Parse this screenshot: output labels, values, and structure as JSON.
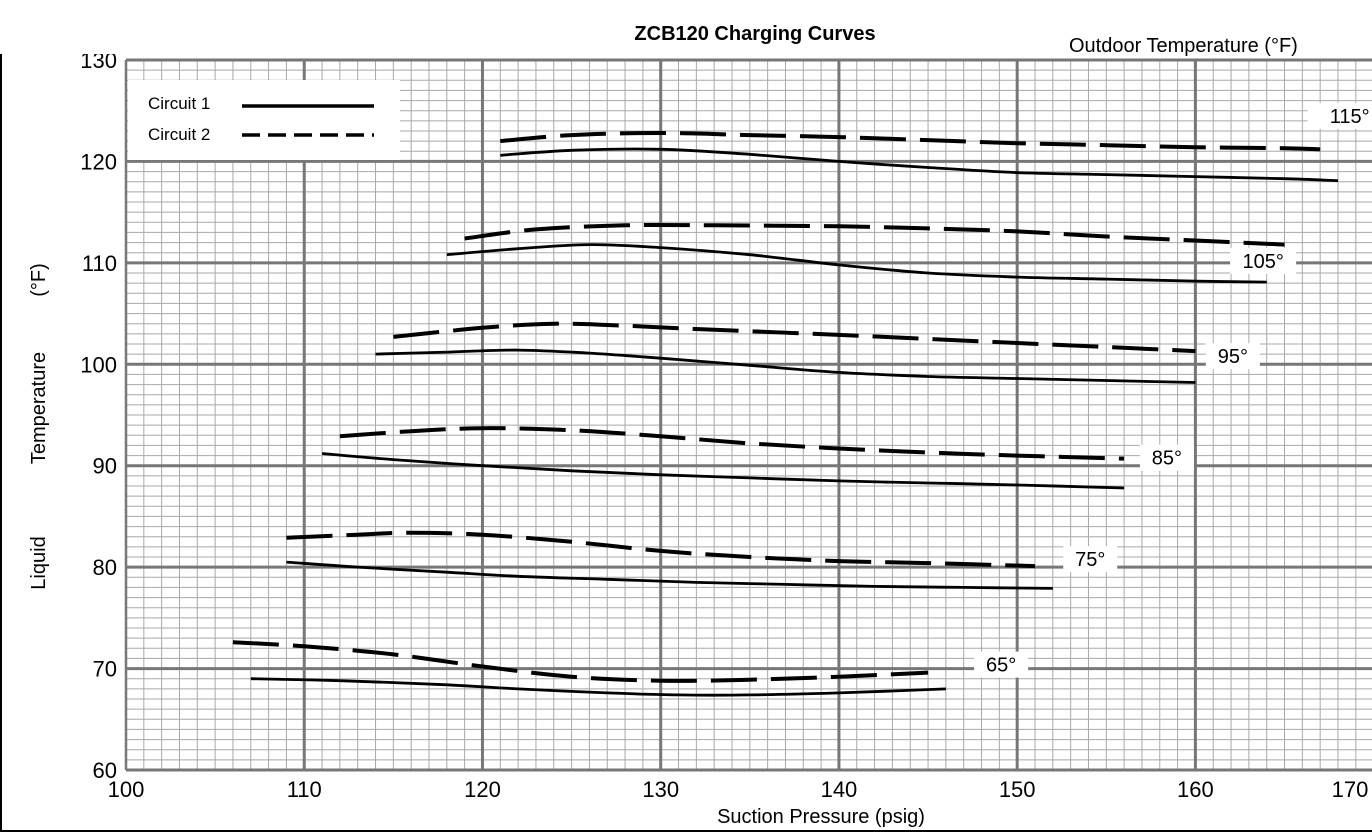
{
  "chart_data": {
    "type": "line",
    "title": "ZCB120 Charging Curves",
    "xlabel": "Suction Pressure (psig)",
    "ylabel_words": [
      "Liquid",
      "Temperature",
      "(°F)"
    ],
    "curve_group_label": "Outdoor Temperature (°F)",
    "xlim": [
      100,
      170
    ],
    "ylim": [
      60,
      130
    ],
    "x_ticks": [
      100,
      110,
      120,
      130,
      140,
      150,
      160,
      170
    ],
    "y_ticks": [
      60,
      70,
      80,
      90,
      100,
      110,
      120,
      130
    ],
    "grid": true,
    "legend_position": "top-left",
    "legend": [
      {
        "label": "Circuit 1",
        "style": "solid"
      },
      {
        "label": "Circuit 2",
        "style": "dashed"
      }
    ],
    "series": [
      {
        "group": "115°",
        "circuit": "Circuit 1",
        "points": [
          [
            121,
            120.6
          ],
          [
            125,
            121.1
          ],
          [
            130,
            121.2
          ],
          [
            135,
            120.7
          ],
          [
            140,
            120.0
          ],
          [
            145,
            119.4
          ],
          [
            150,
            118.9
          ],
          [
            155,
            118.7
          ],
          [
            160,
            118.5
          ],
          [
            165,
            118.3
          ],
          [
            168,
            118.1
          ]
        ]
      },
      {
        "group": "115°",
        "circuit": "Circuit 2",
        "points": [
          [
            121,
            122.0
          ],
          [
            125,
            122.6
          ],
          [
            130,
            122.8
          ],
          [
            135,
            122.6
          ],
          [
            140,
            122.4
          ],
          [
            145,
            122.1
          ],
          [
            150,
            121.8
          ],
          [
            155,
            121.6
          ],
          [
            160,
            121.4
          ],
          [
            165,
            121.3
          ],
          [
            167,
            121.2
          ]
        ]
      },
      {
        "group": "105°",
        "circuit": "Circuit 1",
        "points": [
          [
            118,
            110.8
          ],
          [
            122,
            111.4
          ],
          [
            126,
            111.8
          ],
          [
            130,
            111.5
          ],
          [
            135,
            110.8
          ],
          [
            140,
            109.8
          ],
          [
            145,
            109.0
          ],
          [
            150,
            108.6
          ],
          [
            155,
            108.4
          ],
          [
            160,
            108.2
          ],
          [
            164,
            108.1
          ]
        ]
      },
      {
        "group": "105°",
        "circuit": "Circuit 2",
        "points": [
          [
            119,
            112.4
          ],
          [
            123,
            113.3
          ],
          [
            128,
            113.7
          ],
          [
            133,
            113.7
          ],
          [
            140,
            113.6
          ],
          [
            145,
            113.4
          ],
          [
            150,
            113.1
          ],
          [
            155,
            112.6
          ],
          [
            160,
            112.2
          ],
          [
            165,
            111.8
          ]
        ]
      },
      {
        "group": "95°",
        "circuit": "Circuit 1",
        "points": [
          [
            114,
            101.0
          ],
          [
            118,
            101.2
          ],
          [
            122,
            101.4
          ],
          [
            126,
            101.1
          ],
          [
            130,
            100.6
          ],
          [
            135,
            99.9
          ],
          [
            140,
            99.2
          ],
          [
            145,
            98.8
          ],
          [
            150,
            98.6
          ],
          [
            155,
            98.4
          ],
          [
            160,
            98.2
          ]
        ]
      },
      {
        "group": "95°",
        "circuit": "Circuit 2",
        "points": [
          [
            115,
            102.7
          ],
          [
            120,
            103.6
          ],
          [
            124,
            104.0
          ],
          [
            128,
            103.8
          ],
          [
            133,
            103.4
          ],
          [
            140,
            102.9
          ],
          [
            145,
            102.5
          ],
          [
            150,
            102.1
          ],
          [
            155,
            101.7
          ],
          [
            160,
            101.3
          ]
        ]
      },
      {
        "group": "85°",
        "circuit": "Circuit 1",
        "points": [
          [
            111,
            91.2
          ],
          [
            115,
            90.6
          ],
          [
            120,
            90.0
          ],
          [
            125,
            89.5
          ],
          [
            130,
            89.1
          ],
          [
            135,
            88.8
          ],
          [
            140,
            88.5
          ],
          [
            145,
            88.3
          ],
          [
            150,
            88.1
          ],
          [
            156,
            87.8
          ]
        ]
      },
      {
        "group": "85°",
        "circuit": "Circuit 2",
        "points": [
          [
            112,
            92.9
          ],
          [
            116,
            93.4
          ],
          [
            120,
            93.7
          ],
          [
            125,
            93.5
          ],
          [
            130,
            92.9
          ],
          [
            135,
            92.2
          ],
          [
            140,
            91.7
          ],
          [
            145,
            91.3
          ],
          [
            150,
            91.0
          ],
          [
            156,
            90.7
          ]
        ]
      },
      {
        "group": "75°",
        "circuit": "Circuit 1",
        "points": [
          [
            109,
            80.5
          ],
          [
            113,
            80.0
          ],
          [
            118,
            79.5
          ],
          [
            122,
            79.1
          ],
          [
            127,
            78.8
          ],
          [
            132,
            78.5
          ],
          [
            137,
            78.3
          ],
          [
            142,
            78.1
          ],
          [
            147,
            78.0
          ],
          [
            152,
            77.9
          ]
        ]
      },
      {
        "group": "75°",
        "circuit": "Circuit 2",
        "points": [
          [
            109,
            82.9
          ],
          [
            113,
            83.2
          ],
          [
            116,
            83.4
          ],
          [
            120,
            83.2
          ],
          [
            125,
            82.5
          ],
          [
            130,
            81.6
          ],
          [
            135,
            81.0
          ],
          [
            140,
            80.6
          ],
          [
            145,
            80.4
          ],
          [
            151,
            80.1
          ]
        ]
      },
      {
        "group": "65°",
        "circuit": "Circuit 1",
        "points": [
          [
            107,
            69.0
          ],
          [
            112,
            68.8
          ],
          [
            118,
            68.4
          ],
          [
            122,
            68.0
          ],
          [
            127,
            67.6
          ],
          [
            131,
            67.4
          ],
          [
            135,
            67.4
          ],
          [
            140,
            67.6
          ],
          [
            146,
            68.0
          ]
        ]
      },
      {
        "group": "65°",
        "circuit": "Circuit 2",
        "points": [
          [
            106,
            72.6
          ],
          [
            110,
            72.2
          ],
          [
            115,
            71.4
          ],
          [
            120,
            70.2
          ],
          [
            125,
            69.2
          ],
          [
            130,
            68.8
          ],
          [
            135,
            68.9
          ],
          [
            140,
            69.2
          ],
          [
            145,
            69.6
          ]
        ]
      }
    ],
    "curve_labels": [
      {
        "text": "115°",
        "x": 170,
        "y": 124,
        "anchor": "end"
      },
      {
        "text": "105°",
        "x": 163.8,
        "y": 109.7,
        "anchor": "middle"
      },
      {
        "text": "95°",
        "x": 162.1,
        "y": 100.3,
        "anchor": "middle"
      },
      {
        "text": "85°",
        "x": 158.4,
        "y": 90.3,
        "anchor": "middle"
      },
      {
        "text": "75°",
        "x": 154.1,
        "y": 80.3,
        "anchor": "middle"
      },
      {
        "text": "65°",
        "x": 149.1,
        "y": 69.9,
        "anchor": "middle"
      }
    ]
  }
}
